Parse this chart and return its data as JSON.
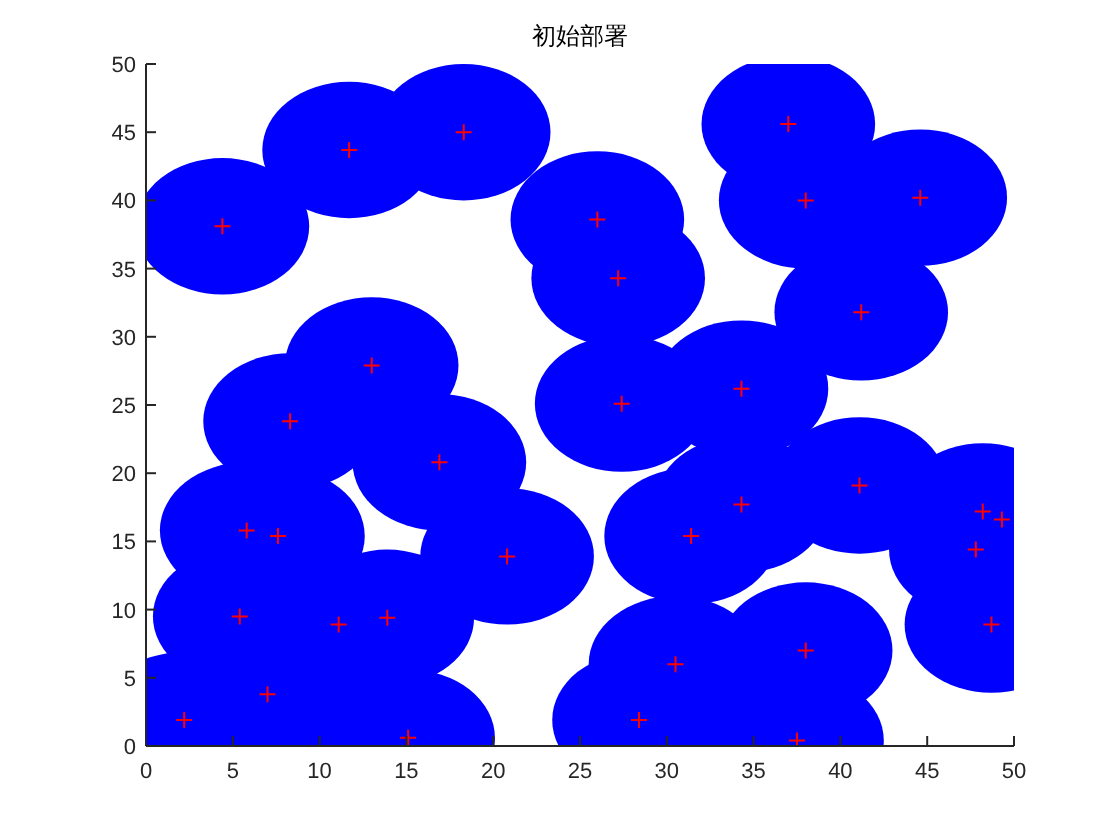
{
  "chart_data": {
    "type": "scatter",
    "title": "初始部署",
    "x": [
      4.4,
      11.7,
      18.3,
      26.0,
      27.2,
      37.0,
      38.0,
      44.6,
      41.2,
      13.0,
      8.3,
      16.9,
      27.4,
      34.3,
      34.3,
      41.1,
      31.4,
      20.8,
      5.8,
      7.6,
      48.2,
      49.3,
      47.8,
      5.4,
      11.1,
      13.9,
      48.7,
      30.5,
      38.0,
      2.2,
      7.0,
      15.1,
      28.4,
      37.5
    ],
    "series": [
      {
        "type": "scatter",
        "color": "#ff0000",
        "marker": "cross",
        "values": [
          38.1,
          43.7,
          45.0,
          38.6,
          34.3,
          45.6,
          40.0,
          40.2,
          31.8,
          27.9,
          23.8,
          20.8,
          25.1,
          26.2,
          17.7,
          19.1,
          15.4,
          13.9,
          15.8,
          15.4,
          17.2,
          16.6,
          14.4,
          9.5,
          8.9,
          9.4,
          8.9,
          6.0,
          7.0,
          1.9,
          3.8,
          0.6,
          1.9,
          0.4
        ]
      }
    ],
    "xlim": [
      0,
      50
    ],
    "ylim": [
      0,
      50
    ],
    "xticks": [
      0,
      5,
      10,
      15,
      20,
      25,
      30,
      35,
      40,
      45,
      50
    ],
    "yticks": [
      0,
      5,
      10,
      15,
      20,
      25,
      30,
      35,
      40,
      45,
      50
    ],
    "grid": false
  }
}
